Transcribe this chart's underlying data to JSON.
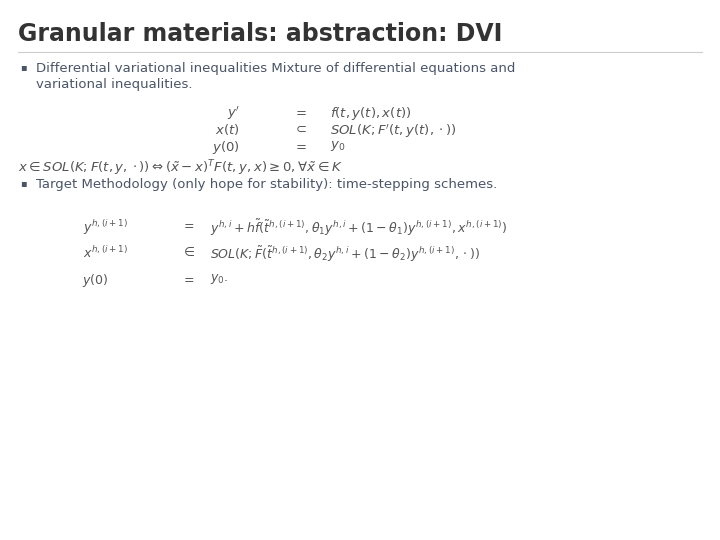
{
  "title": "Granular materials: abstraction: DVI",
  "title_fontsize": 17,
  "title_color": "#333333",
  "background_color": "#ffffff",
  "bullet1_line1": "Differential variational inequalities Mixture of differential equations and",
  "bullet1_line2": "variational inequalities.",
  "bullet2_text": "Target Methodology (only hope for stability): time-stepping schemes.",
  "text_color": "#4a5568",
  "bullet_color": "#4a5568",
  "eq_color": "#555555",
  "font_size_bullet": 9.5,
  "font_size_eq1": 9.5,
  "font_size_eq2": 9.0
}
